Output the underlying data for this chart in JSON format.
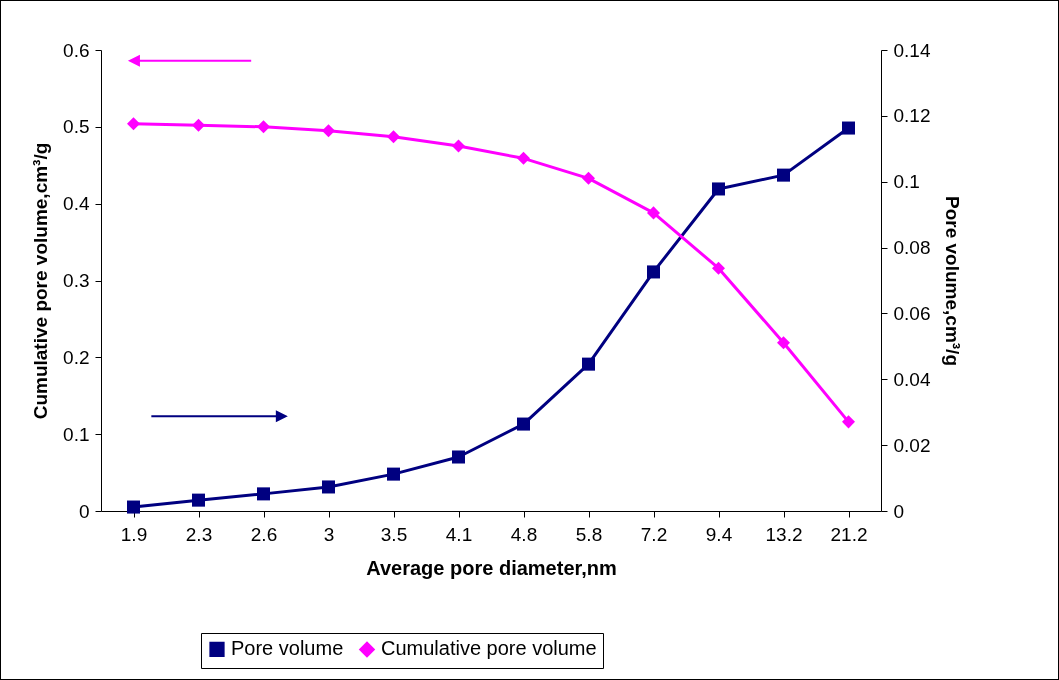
{
  "chart_data": {
    "type": "line",
    "xlabel": "Average pore diameter,nm",
    "ylabel": "Cumulative pore volume,cm³/g",
    "y2label": "Pore volume,cm³/g",
    "categories": [
      "1.9",
      "2.3",
      "2.6",
      "3",
      "3.5",
      "4.1",
      "4.8",
      "5.8",
      "7.2",
      "9.4",
      "13.2",
      "21.2"
    ],
    "series": [
      {
        "name": "Pore volume",
        "color": "#000080",
        "axis": "y2",
        "marker": "square",
        "values": [
          0.0012,
          0.0033,
          0.0052,
          0.0073,
          0.0112,
          0.0164,
          0.0264,
          0.0446,
          0.0726,
          0.0978,
          0.102,
          0.1163
        ]
      },
      {
        "name": "Cumulative pore volume",
        "color": "#ff00ff",
        "axis": "y",
        "marker": "diamond",
        "values": [
          0.504,
          0.502,
          0.5,
          0.495,
          0.487,
          0.475,
          0.459,
          0.433,
          0.388,
          0.316,
          0.219,
          0.116
        ]
      }
    ],
    "ylim": [
      0,
      0.6
    ],
    "yticks": [
      0,
      0.1,
      0.2,
      0.3,
      0.4,
      0.5,
      0.6
    ],
    "y2lim": [
      0,
      0.14
    ],
    "y2ticks": [
      0,
      0.02,
      0.04,
      0.06,
      0.08,
      0.1,
      0.12,
      0.14
    ],
    "grid": false,
    "legend": "bottom",
    "line_style": "solid"
  }
}
